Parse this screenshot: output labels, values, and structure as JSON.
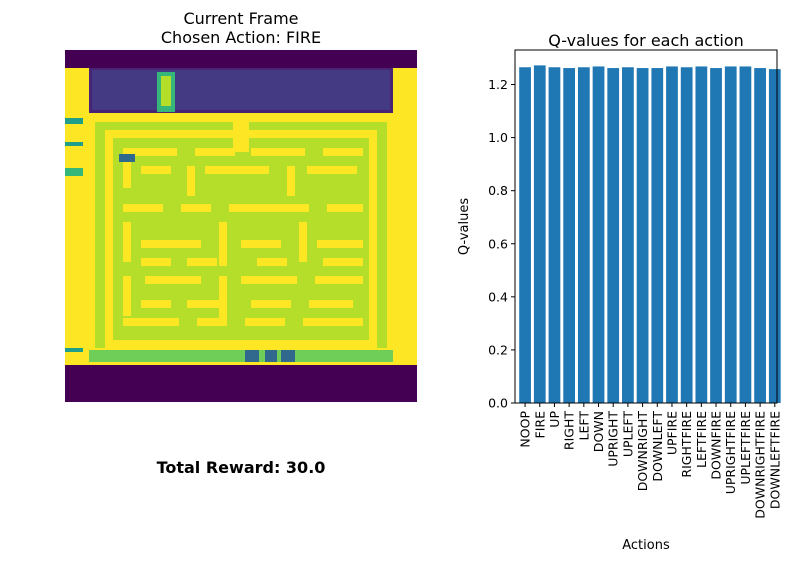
{
  "frame_panel": {
    "title_line1": "Current Frame",
    "title_line2": "Chosen Action: FIRE",
    "reward_text": "Total Reward: 30.0",
    "colors": {
      "dark": "#440154",
      "indigo": "#482475",
      "purple": "#443983",
      "wall": "#fde725",
      "path": "#b5de2b",
      "path_light": "#6ece58",
      "teal": "#1f9e89",
      "green": "#35b779",
      "blue": "#31688e"
    }
  },
  "chart_data": {
    "type": "bar",
    "title": "Q-values for each action",
    "xlabel": "Actions",
    "ylabel": "Q-values",
    "ylim": [
      0,
      1.33
    ],
    "yticks": [
      "0.0",
      "0.2",
      "0.4",
      "0.6",
      "0.8",
      "1.0",
      "1.2"
    ],
    "bar_color": "#1f77b4",
    "categories": [
      "NOOP",
      "FIRE",
      "UP",
      "RIGHT",
      "LEFT",
      "DOWN",
      "UPRIGHT",
      "UPLEFT",
      "DOWNRIGHT",
      "DOWNLEFT",
      "UPFIRE",
      "RIGHTFIRE",
      "LEFTFIRE",
      "DOWNFIRE",
      "UPRIGHTFIRE",
      "UPLEFTFIRE",
      "DOWNRIGHTFIRE",
      "DOWNLEFTFIRE"
    ],
    "values": [
      1.265,
      1.272,
      1.265,
      1.262,
      1.265,
      1.268,
      1.262,
      1.265,
      1.262,
      1.262,
      1.268,
      1.265,
      1.268,
      1.262,
      1.268,
      1.268,
      1.262,
      1.258
    ]
  }
}
